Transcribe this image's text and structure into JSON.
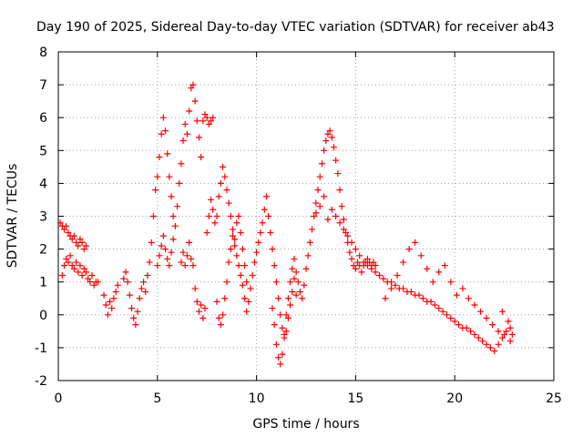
{
  "chart_data": {
    "type": "scatter",
    "title": "Day 190 of 2025, Sidereal Day-to-day VTEC variation (SDTVAR) for receiver ab43",
    "xlabel": "GPS time / hours",
    "ylabel": "SDTVAR / TECUs",
    "xlim": [
      0,
      25
    ],
    "ylim": [
      -2,
      8
    ],
    "x_ticks": [
      0,
      5,
      10,
      15,
      20,
      25
    ],
    "y_ticks": [
      -2,
      -1,
      0,
      1,
      2,
      3,
      4,
      5,
      6,
      7,
      8
    ],
    "grid": true,
    "legend": "none",
    "marker": "+",
    "marker_color": "#ff0000",
    "series": [
      {
        "name": "SDTVAR",
        "x": [
          0.1,
          0.2,
          0.3,
          0.4,
          0.5,
          0.6,
          0.7,
          0.8,
          0.9,
          1.0,
          1.1,
          1.2,
          1.3,
          1.4,
          0.2,
          0.3,
          0.4,
          0.5,
          0.6,
          0.7,
          0.8,
          0.9,
          1.0,
          1.1,
          1.2,
          1.3,
          1.4,
          1.5,
          1.6,
          1.7,
          1.8,
          1.9,
          2.0,
          2.3,
          2.4,
          2.5,
          2.6,
          2.7,
          2.8,
          2.9,
          3.0,
          3.3,
          3.4,
          3.5,
          3.6,
          3.7,
          3.8,
          3.9,
          4.0,
          4.1,
          4.2,
          4.3,
          4.4,
          4.5,
          4.6,
          4.7,
          4.8,
          4.9,
          5.0,
          5.1,
          5.2,
          5.3,
          5.4,
          5.5,
          5.6,
          5.7,
          5.8,
          5.0,
          5.1,
          5.2,
          5.3,
          5.4,
          5.5,
          5.6,
          5.7,
          5.8,
          5.9,
          6.0,
          6.1,
          6.2,
          6.3,
          6.4,
          6.5,
          6.6,
          6.7,
          6.8,
          6.9,
          7.0,
          7.1,
          7.2,
          7.3,
          7.4,
          7.5,
          7.6,
          7.7,
          7.8,
          6.2,
          6.3,
          6.4,
          6.5,
          6.6,
          6.7,
          6.8,
          6.9,
          7.0,
          7.1,
          7.2,
          7.3,
          7.4,
          7.5,
          7.6,
          7.7,
          7.8,
          7.9,
          8.0,
          8.1,
          8.2,
          8.3,
          8.4,
          8.5,
          8.6,
          8.7,
          8.8,
          8.9,
          9.0,
          9.1,
          9.2,
          9.3,
          9.4,
          9.5,
          8.0,
          8.1,
          8.2,
          8.3,
          8.4,
          8.5,
          8.6,
          8.7,
          8.8,
          8.9,
          9.0,
          9.1,
          9.2,
          9.3,
          9.4,
          9.5,
          9.6,
          9.7,
          9.8,
          9.9,
          10.0,
          10.1,
          10.2,
          10.3,
          10.4,
          10.5,
          10.6,
          10.7,
          10.8,
          10.9,
          11.0,
          11.1,
          11.2,
          11.3,
          11.4,
          11.5,
          11.6,
          11.7,
          11.8,
          11.9,
          12.0,
          10.8,
          10.9,
          11.0,
          11.1,
          11.2,
          11.3,
          11.4,
          11.5,
          11.6,
          11.7,
          11.8,
          11.9,
          12.0,
          12.1,
          12.2,
          12.3,
          12.4,
          12.5,
          12.6,
          12.7,
          12.8,
          12.9,
          13.0,
          13.1,
          13.2,
          13.3,
          13.4,
          13.5,
          13.6,
          13.7,
          13.8,
          13.9,
          14.0,
          14.1,
          14.2,
          14.3,
          14.4,
          14.5,
          14.6,
          14.7,
          14.8,
          14.9,
          15.0,
          15.1,
          15.2,
          15.3,
          15.4,
          15.5,
          15.6,
          15.7,
          15.8,
          15.9,
          16.0,
          13.0,
          13.2,
          13.4,
          13.6,
          13.8,
          14.0,
          14.2,
          14.4,
          14.6,
          14.8,
          15.0,
          15.2,
          15.4,
          15.6,
          15.8,
          16.0,
          16.2,
          16.4,
          16.6,
          16.8,
          17.0,
          17.2,
          17.4,
          17.6,
          17.8,
          18.0,
          18.2,
          18.4,
          18.6,
          18.8,
          19.0,
          19.2,
          19.4,
          19.6,
          19.8,
          20.0,
          20.2,
          20.4,
          20.6,
          20.8,
          21.0,
          21.2,
          21.4,
          21.6,
          21.8,
          22.0,
          22.2,
          22.4,
          22.6,
          22.8,
          16.5,
          16.8,
          17.1,
          17.4,
          17.7,
          18.0,
          18.3,
          18.6,
          18.9,
          19.2,
          19.5,
          19.8,
          20.1,
          20.4,
          20.7,
          21.0,
          21.3,
          21.6,
          21.9,
          22.2,
          22.5,
          22.8,
          22.9,
          22.7,
          22.4
        ],
        "y": [
          2.8,
          2.7,
          2.6,
          2.7,
          2.5,
          2.4,
          2.3,
          2.4,
          2.2,
          2.1,
          2.3,
          2.2,
          2.0,
          2.1,
          1.2,
          1.5,
          1.7,
          1.6,
          1.8,
          1.5,
          1.4,
          1.6,
          1.3,
          1.5,
          1.2,
          1.4,
          1.3,
          1.1,
          1.0,
          1.2,
          0.9,
          1.0,
          1.0,
          0.6,
          0.3,
          0.0,
          0.4,
          0.2,
          0.5,
          0.7,
          0.9,
          1.1,
          1.3,
          1.0,
          0.6,
          0.2,
          -0.1,
          -0.3,
          0.1,
          0.5,
          0.8,
          1.0,
          0.7,
          1.2,
          1.6,
          2.2,
          3.0,
          3.8,
          4.2,
          4.8,
          5.5,
          6.0,
          5.6,
          4.9,
          4.2,
          3.6,
          3.0,
          1.5,
          1.8,
          2.1,
          2.4,
          2.0,
          1.7,
          1.5,
          1.9,
          2.3,
          2.7,
          3.3,
          4.0,
          4.6,
          5.3,
          5.8,
          5.5,
          6.2,
          6.9,
          7.0,
          6.5,
          5.9,
          5.4,
          4.8,
          5.9,
          6.1,
          6.0,
          5.8,
          5.9,
          6.0,
          1.6,
          1.9,
          1.5,
          1.8,
          2.2,
          1.7,
          1.5,
          0.8,
          0.4,
          0.1,
          0.3,
          -0.1,
          0.2,
          2.5,
          3.0,
          3.5,
          3.2,
          2.8,
          3.0,
          3.6,
          4.0,
          4.5,
          4.2,
          3.8,
          3.4,
          3.0,
          2.6,
          2.3,
          2.8,
          3.0,
          2.5,
          2.0,
          1.5,
          1.0,
          0.4,
          -0.1,
          -0.3,
          0.0,
          0.5,
          1.0,
          1.6,
          2.0,
          2.4,
          2.1,
          1.8,
          1.5,
          1.2,
          0.9,
          0.5,
          0.1,
          0.4,
          0.8,
          1.2,
          1.6,
          1.9,
          2.2,
          2.5,
          2.8,
          3.2,
          3.6,
          3.0,
          2.5,
          2.0,
          1.5,
          1.0,
          0.5,
          0.0,
          -0.4,
          -0.7,
          -0.5,
          -0.1,
          0.3,
          0.7,
          1.1,
          0.6,
          0.2,
          -0.3,
          -0.9,
          -1.3,
          -1.5,
          -1.2,
          -0.6,
          0.0,
          0.5,
          1.0,
          1.4,
          1.7,
          1.3,
          1.0,
          0.7,
          0.5,
          0.9,
          1.4,
          1.8,
          2.2,
          2.6,
          3.0,
          3.4,
          3.8,
          4.2,
          4.6,
          5.0,
          5.3,
          5.5,
          5.6,
          5.4,
          5.1,
          4.7,
          4.3,
          3.8,
          3.3,
          2.9,
          2.5,
          2.2,
          1.9,
          1.7,
          1.5,
          1.4,
          1.6,
          1.5,
          1.3,
          1.5,
          1.6,
          1.7,
          1.6,
          1.5,
          1.6,
          1.5,
          3.1,
          3.3,
          3.6,
          2.9,
          3.2,
          3.0,
          2.8,
          2.6,
          2.4,
          2.2,
          2.0,
          1.8,
          1.6,
          1.5,
          1.4,
          1.3,
          1.2,
          1.1,
          1.0,
          1.0,
          0.9,
          0.8,
          0.8,
          0.7,
          0.7,
          0.6,
          0.6,
          0.5,
          0.4,
          0.4,
          0.3,
          0.2,
          0.1,
          0.0,
          -0.1,
          -0.2,
          -0.3,
          -0.4,
          -0.4,
          -0.5,
          -0.6,
          -0.7,
          -0.8,
          -0.9,
          -1.0,
          -1.1,
          -0.9,
          -0.7,
          -0.5,
          -0.4,
          0.5,
          0.8,
          1.2,
          1.6,
          2.0,
          2.2,
          1.8,
          1.4,
          1.0,
          1.3,
          1.5,
          1.0,
          0.6,
          0.8,
          0.5,
          0.3,
          0.1,
          -0.1,
          -0.3,
          -0.5,
          -0.6,
          -0.8,
          -0.6,
          -0.2,
          0.1
        ]
      }
    ]
  }
}
